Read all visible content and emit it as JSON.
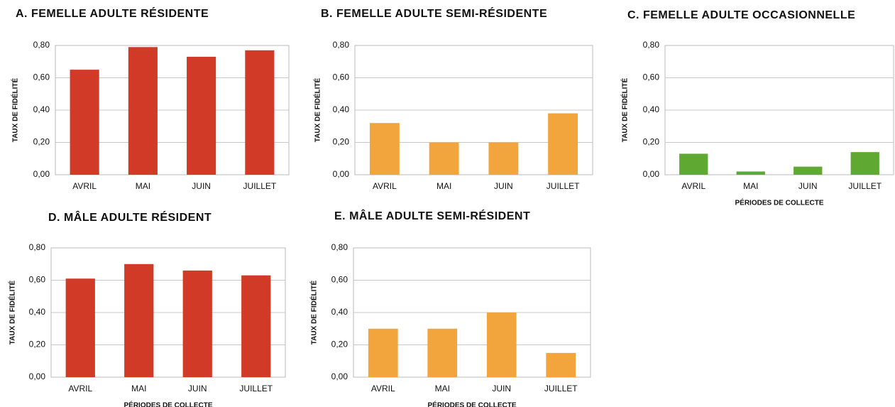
{
  "chart_data": [
    {
      "type": "bar",
      "title": "A. FEMELLE ADULTE RÉSIDENTE",
      "ylabel": "TAUX DE FIDÉLITÉ",
      "categories": [
        "AVRIL",
        "MAI",
        "JUIN",
        "JUILLET"
      ],
      "values": [
        0.65,
        0.79,
        0.73,
        0.77
      ],
      "color": "#d23a28",
      "ylim": [
        0,
        0.8
      ],
      "yticks": [
        {
          "value": 0,
          "label": "0,00"
        },
        {
          "value": 0.2,
          "label": "0,20"
        },
        {
          "value": 0.4,
          "label": "0,40"
        },
        {
          "value": 0.6,
          "label": "0,60"
        },
        {
          "value": 0.8,
          "label": "0,80"
        }
      ],
      "grid": true
    },
    {
      "type": "bar",
      "title": "B. FEMELLE ADULTE SEMI-RÉSIDENTE",
      "ylabel": "TAUX DE FIDÉLITÉ",
      "categories": [
        "AVRIL",
        "MAI",
        "JUIN",
        "JUILLET"
      ],
      "values": [
        0.32,
        0.2,
        0.2,
        0.38
      ],
      "color": "#f2a53c",
      "ylim": [
        0,
        0.8
      ],
      "yticks": [
        {
          "value": 0,
          "label": "0,00"
        },
        {
          "value": 0.2,
          "label": "0,20"
        },
        {
          "value": 0.4,
          "label": "0,40"
        },
        {
          "value": 0.6,
          "label": "0,60"
        },
        {
          "value": 0.8,
          "label": "0,80"
        }
      ],
      "grid": true
    },
    {
      "type": "bar",
      "title": "C. FEMELLE ADULTE OCCASIONNELLE",
      "ylabel": "TAUX DE FIDÉLITÉ",
      "xlabel": "PÉRIODES DE COLLECTE",
      "categories": [
        "AVRIL",
        "MAI",
        "JUIN",
        "JUILLET"
      ],
      "values": [
        0.13,
        0.02,
        0.05,
        0.14
      ],
      "color": "#5fa831",
      "ylim": [
        0,
        0.8
      ],
      "yticks": [
        {
          "value": 0,
          "label": "0,00"
        },
        {
          "value": 0.2,
          "label": "0,20"
        },
        {
          "value": 0.4,
          "label": "0,40"
        },
        {
          "value": 0.6,
          "label": "0,60"
        },
        {
          "value": 0.8,
          "label": "0,80"
        }
      ],
      "grid": true
    },
    {
      "type": "bar",
      "title": "D. MÂLE ADULTE RÉSIDENT",
      "ylabel": "TAUX DE FIDÉLITÉ",
      "xlabel": "PÉRIODES DE COLLECTE",
      "categories": [
        "AVRIL",
        "MAI",
        "JUIN",
        "JUILLET"
      ],
      "values": [
        0.61,
        0.7,
        0.66,
        0.63
      ],
      "color": "#d23a28",
      "ylim": [
        0,
        0.8
      ],
      "yticks": [
        {
          "value": 0,
          "label": "0,00"
        },
        {
          "value": 0.2,
          "label": "0,20"
        },
        {
          "value": 0.4,
          "label": "0,40"
        },
        {
          "value": 0.6,
          "label": "0,60"
        },
        {
          "value": 0.8,
          "label": "0,80"
        }
      ],
      "grid": true
    },
    {
      "type": "bar",
      "title": "E. MÂLE ADULTE SEMI-RÉSIDENT",
      "ylabel": "TAUX DE FIDÉLITÉ",
      "xlabel": "PÉRIODES DE COLLECTE",
      "categories": [
        "AVRIL",
        "MAI",
        "JUIN",
        "JUILLET"
      ],
      "values": [
        0.3,
        0.3,
        0.4,
        0.15
      ],
      "color": "#f2a53c",
      "ylim": [
        0,
        0.8
      ],
      "yticks": [
        {
          "value": 0,
          "label": "0,00"
        },
        {
          "value": 0.2,
          "label": "0,20"
        },
        {
          "value": 0.4,
          "label": "0,40"
        },
        {
          "value": 0.6,
          "label": "0,60"
        },
        {
          "value": 0.8,
          "label": "0,80"
        }
      ],
      "grid": true
    }
  ]
}
